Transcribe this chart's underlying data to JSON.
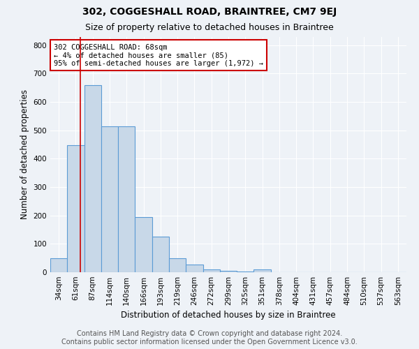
{
  "title": "302, COGGESHALL ROAD, BRAINTREE, CM7 9EJ",
  "subtitle": "Size of property relative to detached houses in Braintree",
  "xlabel": "Distribution of detached houses by size in Braintree",
  "ylabel": "Number of detached properties",
  "footer_line1": "Contains HM Land Registry data © Crown copyright and database right 2024.",
  "footer_line2": "Contains public sector information licensed under the Open Government Licence v3.0.",
  "categories": [
    "34sqm",
    "61sqm",
    "87sqm",
    "114sqm",
    "140sqm",
    "166sqm",
    "193sqm",
    "219sqm",
    "246sqm",
    "272sqm",
    "299sqm",
    "325sqm",
    "351sqm",
    "378sqm",
    "404sqm",
    "431sqm",
    "457sqm",
    "484sqm",
    "510sqm",
    "537sqm",
    "563sqm"
  ],
  "bar_values": [
    50,
    447,
    660,
    515,
    515,
    195,
    125,
    50,
    27,
    10,
    5,
    3,
    10,
    0,
    0,
    0,
    0,
    0,
    0,
    0,
    0
  ],
  "bar_color": "#c8d8e8",
  "bar_edge_color": "#5b9bd5",
  "red_line_x": 1.25,
  "red_line_color": "#cc0000",
  "annotation_text": "302 COGGESHALL ROAD: 68sqm\n← 4% of detached houses are smaller (85)\n95% of semi-detached houses are larger (1,972) →",
  "annotation_box_color": "white",
  "annotation_box_edge_color": "#cc0000",
  "ylim": [
    0,
    830
  ],
  "yticks": [
    0,
    100,
    200,
    300,
    400,
    500,
    600,
    700,
    800
  ],
  "background_color": "#eef2f7",
  "grid_color": "white",
  "title_fontsize": 10,
  "subtitle_fontsize": 9,
  "axis_label_fontsize": 8.5,
  "tick_fontsize": 7.5,
  "footer_fontsize": 7,
  "annot_fontsize": 7.5
}
